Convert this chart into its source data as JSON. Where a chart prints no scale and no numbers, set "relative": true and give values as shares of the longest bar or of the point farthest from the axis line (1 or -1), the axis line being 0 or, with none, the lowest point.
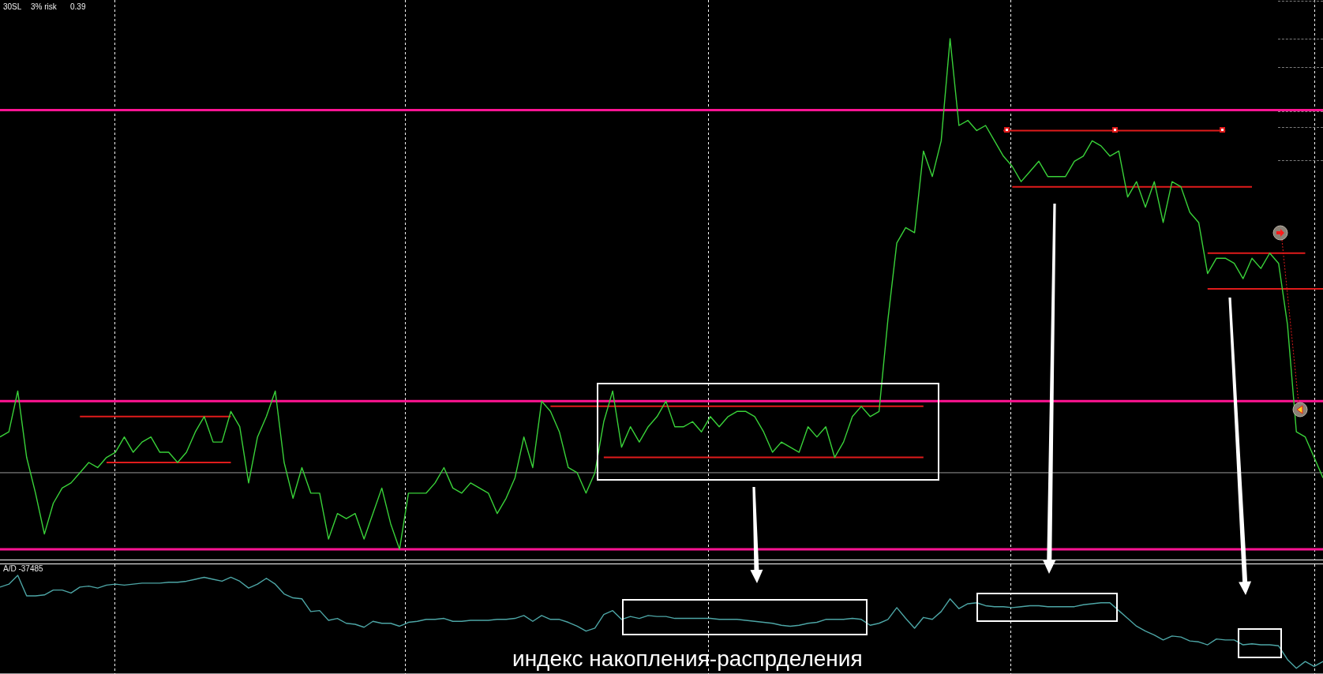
{
  "chart_data": [
    {
      "type": "line",
      "relative": true,
      "categories": [
        null,
        null,
        null,
        null,
        null,
        null,
        null,
        null,
        null,
        null,
        null,
        null,
        null,
        null,
        null,
        null,
        null,
        null,
        null,
        null,
        null,
        null,
        null,
        null,
        null,
        null,
        null,
        null,
        null,
        null,
        null,
        null,
        null,
        null,
        null,
        null,
        null,
        null,
        null,
        null,
        null,
        null,
        null,
        null,
        null,
        null,
        null,
        null,
        null,
        null,
        null,
        null,
        null,
        null,
        null,
        null,
        null,
        null,
        null,
        null,
        null,
        null,
        null,
        null,
        null,
        null,
        null,
        null,
        null,
        null,
        null,
        null,
        null,
        null,
        null,
        null,
        null,
        null,
        null,
        null,
        null,
        null,
        null,
        null,
        null,
        null,
        null,
        null,
        null,
        null,
        null,
        null,
        null,
        null,
        null,
        null,
        null,
        null,
        null,
        null,
        null,
        null,
        null,
        null,
        null,
        null,
        null,
        null,
        null,
        null,
        null,
        null,
        null,
        null,
        null,
        null,
        null,
        null,
        null,
        null,
        null,
        null,
        null,
        null,
        null,
        null,
        null,
        null,
        null,
        null,
        null,
        null,
        null,
        null,
        null,
        null,
        null,
        null,
        null,
        null,
        null,
        null,
        null,
        null,
        null,
        null,
        null,
        null,
        null,
        null
      ],
      "series": [
        {
          "color": "#39d139",
          "values": [
            0.22,
            0.23,
            0.31,
            0.18,
            0.11,
            0.03,
            0.09,
            0.12,
            0.13,
            0.15,
            0.17,
            0.16,
            0.18,
            0.19,
            0.22,
            0.19,
            0.21,
            0.22,
            0.19,
            0.19,
            0.17,
            0.19,
            0.23,
            0.26,
            0.21,
            0.21,
            0.27,
            0.24,
            0.13,
            0.22,
            0.26,
            0.31,
            0.17,
            0.1,
            0.16,
            0.11,
            0.11,
            0.02,
            0.07,
            0.06,
            0.07,
            0.02,
            0.07,
            0.12,
            0.05,
            0,
            0.11,
            0.11,
            0.11,
            0.13,
            0.16,
            0.12,
            0.11,
            0.13,
            0.12,
            0.11,
            0.07,
            0.1,
            0.14,
            0.22,
            0.16,
            0.29,
            0.27,
            0.23,
            0.16,
            0.15,
            0.11,
            0.15,
            0.25,
            0.31,
            0.2,
            0.24,
            0.21,
            0.24,
            0.26,
            0.29,
            0.24,
            0.24,
            0.25,
            0.23,
            0.26,
            0.24,
            0.26,
            0.27,
            0.27,
            0.26,
            0.23,
            0.19,
            0.21,
            0.2,
            0.19,
            0.24,
            0.22,
            0.24,
            0.18,
            0.21,
            0.26,
            0.28,
            0.26,
            0.27,
            0.45,
            0.6,
            0.63,
            0.62,
            0.78,
            0.73,
            0.8,
            1,
            0.83,
            0.84,
            0.82,
            0.83,
            0.8,
            0.77,
            0.75,
            0.72,
            0.74,
            0.76,
            0.73,
            0.73,
            0.73,
            0.76,
            0.77,
            0.8,
            0.79,
            0.77,
            0.78,
            0.69,
            0.72,
            0.67,
            0.72,
            0.64,
            0.72,
            0.71,
            0.66,
            0.64,
            0.54,
            0.57,
            0.57,
            0.56,
            0.53,
            0.57,
            0.55,
            0.58,
            0.56,
            0.44,
            0.23,
            0.22,
            0.18,
            0.14
          ]
        },
        {
          "color": "#e01b1b",
          "values": [
            null,
            null,
            null,
            null,
            null,
            null,
            null,
            null,
            null,
            0.26,
            0.26,
            0.26,
            0.26,
            0.26,
            0.26,
            0.26,
            0.26,
            0.26,
            0.26,
            0.26,
            0.26,
            0.26,
            0.26,
            0.26,
            0.26,
            0.26,
            0.26,
            null,
            null,
            null,
            null,
            null,
            null,
            null,
            null,
            null,
            null,
            null,
            null,
            null,
            null,
            null,
            null,
            null,
            null,
            null,
            null,
            null,
            null,
            null,
            null,
            null,
            null,
            null,
            null,
            null,
            null,
            null,
            null,
            null,
            null,
            null,
            null,
            null,
            null,
            null,
            null,
            null,
            null,
            null,
            null,
            null,
            null,
            null,
            null,
            null,
            null,
            null,
            null,
            null,
            null,
            null,
            null,
            null,
            null,
            null,
            null,
            null,
            null,
            null,
            null,
            null,
            null,
            null,
            null,
            null,
            null,
            null,
            null,
            null,
            null,
            null,
            null,
            null,
            null,
            null,
            null,
            null,
            null,
            null,
            null,
            null,
            null,
            null,
            null,
            null,
            null,
            null,
            null,
            null,
            null,
            null,
            null,
            null,
            null,
            null,
            null,
            null,
            null,
            null,
            null,
            null,
            null,
            null,
            null,
            null,
            null,
            null,
            null,
            null,
            null,
            null,
            null,
            null,
            null,
            null,
            null,
            null,
            null,
            null
          ]
        },
        {
          "color": "#e01b1b",
          "values": [
            null,
            null,
            null,
            null,
            null,
            null,
            null,
            null,
            null,
            null,
            null,
            null,
            0.17,
            0.17,
            0.17,
            0.17,
            0.17,
            0.17,
            0.17,
            0.17,
            0.17,
            0.17,
            0.17,
            0.17,
            0.17,
            0.17,
            0.17,
            null,
            null,
            null,
            null,
            null,
            null,
            null,
            null,
            null,
            null,
            null,
            null,
            null,
            null,
            null,
            null,
            null,
            null,
            null,
            null,
            null,
            null,
            null,
            null,
            null,
            null,
            null,
            null,
            null,
            null,
            null,
            null,
            null,
            null,
            null,
            null,
            null,
            null,
            null,
            null,
            null,
            null,
            null,
            null,
            null,
            null,
            null,
            null,
            null,
            null,
            null,
            null,
            null,
            null,
            null,
            null,
            null,
            null,
            null,
            null,
            null,
            null,
            null,
            null,
            null,
            null,
            null,
            null,
            null,
            null,
            null,
            null,
            null,
            null,
            null,
            null,
            null,
            null,
            null,
            null,
            null,
            null,
            null,
            null,
            null,
            null,
            null,
            null,
            null,
            null,
            null,
            null,
            null,
            null,
            null,
            null,
            null,
            null,
            null,
            null,
            null,
            null,
            null,
            null,
            null,
            null,
            null,
            null,
            null,
            null,
            null,
            null,
            null,
            null,
            null,
            null,
            null,
            null,
            null,
            null,
            null,
            null,
            null
          ]
        },
        {
          "color": "#e01b1b",
          "values": [
            null,
            null,
            null,
            null,
            null,
            null,
            null,
            null,
            null,
            null,
            null,
            null,
            null,
            null,
            null,
            null,
            null,
            null,
            null,
            null,
            null,
            null,
            null,
            null,
            null,
            null,
            null,
            null,
            null,
            null,
            null,
            null,
            null,
            null,
            null,
            null,
            null,
            null,
            null,
            null,
            null,
            null,
            null,
            null,
            null,
            null,
            null,
            null,
            null,
            null,
            null,
            null,
            null,
            null,
            null,
            null,
            null,
            null,
            null,
            null,
            null,
            null,
            0.28,
            0.28,
            0.28,
            0.28,
            0.28,
            0.28,
            0.28,
            0.28,
            0.28,
            0.28,
            0.28,
            0.28,
            0.28,
            0.28,
            0.28,
            0.28,
            0.28,
            0.28,
            0.28,
            0.28,
            0.28,
            0.28,
            0.28,
            0.28,
            0.28,
            0.28,
            0.28,
            0.28,
            0.28,
            0.28,
            0.28,
            0.28,
            0.28,
            0.28,
            0.28,
            0.28,
            0.28,
            0.28,
            0.28,
            0.28,
            0.28,
            0.28,
            0.28,
            null,
            null,
            null,
            null,
            null,
            null,
            null,
            null,
            null,
            null,
            null,
            null,
            null,
            null,
            null,
            null,
            null,
            null,
            null,
            null,
            null,
            null,
            null,
            null,
            null,
            null,
            null,
            null,
            null,
            null,
            null,
            null,
            null,
            null,
            null,
            null,
            null,
            null,
            null,
            null,
            null,
            null,
            null,
            null,
            null
          ]
        },
        {
          "color": "#e01b1b",
          "values": [
            null,
            null,
            null,
            null,
            null,
            null,
            null,
            null,
            null,
            null,
            null,
            null,
            null,
            null,
            null,
            null,
            null,
            null,
            null,
            null,
            null,
            null,
            null,
            null,
            null,
            null,
            null,
            null,
            null,
            null,
            null,
            null,
            null,
            null,
            null,
            null,
            null,
            null,
            null,
            null,
            null,
            null,
            null,
            null,
            null,
            null,
            null,
            null,
            null,
            null,
            null,
            null,
            null,
            null,
            null,
            null,
            null,
            null,
            null,
            null,
            null,
            null,
            null,
            null,
            null,
            null,
            null,
            null,
            0.18,
            0.18,
            0.18,
            0.18,
            0.18,
            0.18,
            0.18,
            0.18,
            0.18,
            0.18,
            0.18,
            0.18,
            0.18,
            0.18,
            0.18,
            0.18,
            0.18,
            0.18,
            0.18,
            0.18,
            0.18,
            0.18,
            0.18,
            0.18,
            0.18,
            0.18,
            0.18,
            0.18,
            0.18,
            0.18,
            0.18,
            0.18,
            0.18,
            0.18,
            0.18,
            0.18,
            0.18,
            null,
            null,
            null,
            null,
            null,
            null,
            null,
            null,
            null,
            null,
            null,
            null,
            null,
            null,
            null,
            null,
            null,
            null,
            null,
            null,
            null,
            null,
            null,
            null,
            null,
            null,
            null,
            null,
            null,
            null,
            null,
            null,
            null,
            null,
            null,
            null,
            null,
            null,
            null,
            null,
            null,
            null,
            null,
            null,
            null
          ]
        },
        {
          "color": "#e01b1b",
          "values": [
            null,
            null,
            null,
            null,
            null,
            null,
            null,
            null,
            null,
            null,
            null,
            null,
            null,
            null,
            null,
            null,
            null,
            null,
            null,
            null,
            null,
            null,
            null,
            null,
            null,
            null,
            null,
            null,
            null,
            null,
            null,
            null,
            null,
            null,
            null,
            null,
            null,
            null,
            null,
            null,
            null,
            null,
            null,
            null,
            null,
            null,
            null,
            null,
            null,
            null,
            null,
            null,
            null,
            null,
            null,
            null,
            null,
            null,
            null,
            null,
            null,
            null,
            null,
            null,
            null,
            null,
            null,
            null,
            null,
            null,
            null,
            null,
            null,
            null,
            null,
            null,
            null,
            null,
            null,
            null,
            null,
            null,
            null,
            null,
            null,
            null,
            null,
            null,
            null,
            null,
            null,
            null,
            null,
            null,
            null,
            null,
            null,
            null,
            null,
            null,
            null,
            null,
            null,
            null,
            null,
            null,
            null,
            null,
            null,
            null,
            null,
            null,
            null,
            0.82,
            0.82,
            0.82,
            0.82,
            0.82,
            0.82,
            0.82,
            0.82,
            0.82,
            0.82,
            0.82,
            0.82,
            0.82,
            0.82,
            0.82,
            0.82,
            0.82,
            0.82,
            0.82,
            0.82,
            0.82,
            0.82,
            0.82,
            0.82,
            0.82,
            0.82,
            null,
            null,
            null,
            null,
            null,
            null,
            null,
            null,
            null,
            null,
            null
          ]
        },
        {
          "color": "#e01b1b",
          "values": [
            null,
            null,
            null,
            null,
            null,
            null,
            null,
            null,
            null,
            null,
            null,
            null,
            null,
            null,
            null,
            null,
            null,
            null,
            null,
            null,
            null,
            null,
            null,
            null,
            null,
            null,
            null,
            null,
            null,
            null,
            null,
            null,
            null,
            null,
            null,
            null,
            null,
            null,
            null,
            null,
            null,
            null,
            null,
            null,
            null,
            null,
            null,
            null,
            null,
            null,
            null,
            null,
            null,
            null,
            null,
            null,
            null,
            null,
            null,
            null,
            null,
            null,
            null,
            null,
            null,
            null,
            null,
            null,
            null,
            null,
            null,
            null,
            null,
            null,
            null,
            null,
            null,
            null,
            null,
            null,
            null,
            null,
            null,
            null,
            null,
            null,
            null,
            null,
            null,
            null,
            null,
            null,
            null,
            null,
            null,
            null,
            null,
            null,
            null,
            null,
            null,
            null,
            null,
            null,
            null,
            null,
            null,
            null,
            null,
            null,
            null,
            null,
            null,
            null,
            0.71,
            0.71,
            0.71,
            0.71,
            0.71,
            0.71,
            0.71,
            0.71,
            0.71,
            0.71,
            0.71,
            0.71,
            0.71,
            0.71,
            0.71,
            0.71,
            0.71,
            0.71,
            0.71,
            0.71,
            0.71,
            0.71,
            0.71,
            0.71,
            0.71,
            0.71,
            0.71,
            0.71,
            null,
            null,
            null,
            null,
            null,
            null,
            null,
            null
          ]
        },
        {
          "color": "#e01b1b",
          "values": [
            null,
            null,
            null,
            null,
            null,
            null,
            null,
            null,
            null,
            null,
            null,
            null,
            null,
            null,
            null,
            null,
            null,
            null,
            null,
            null,
            null,
            null,
            null,
            null,
            null,
            null,
            null,
            null,
            null,
            null,
            null,
            null,
            null,
            null,
            null,
            null,
            null,
            null,
            null,
            null,
            null,
            null,
            null,
            null,
            null,
            null,
            null,
            null,
            null,
            null,
            null,
            null,
            null,
            null,
            null,
            null,
            null,
            null,
            null,
            null,
            null,
            null,
            null,
            null,
            null,
            null,
            null,
            null,
            null,
            null,
            null,
            null,
            null,
            null,
            null,
            null,
            null,
            null,
            null,
            null,
            null,
            null,
            null,
            null,
            null,
            null,
            null,
            null,
            null,
            null,
            null,
            null,
            null,
            null,
            null,
            null,
            null,
            null,
            null,
            null,
            null,
            null,
            null,
            null,
            null,
            null,
            null,
            null,
            null,
            null,
            null,
            null,
            null,
            null,
            null,
            null,
            null,
            null,
            null,
            null,
            null,
            null,
            null,
            null,
            null,
            null,
            null,
            null,
            null,
            null,
            null,
            null,
            null,
            null,
            null,
            null,
            0.58,
            0.58,
            0.58,
            0.58,
            0.58,
            0.58,
            0.58,
            0.58,
            0.58,
            0.58,
            0.58,
            0.58,
            null,
            null
          ]
        },
        {
          "color": "#e01b1b",
          "values": [
            null,
            null,
            null,
            null,
            null,
            null,
            null,
            null,
            null,
            null,
            null,
            null,
            null,
            null,
            null,
            null,
            null,
            null,
            null,
            null,
            null,
            null,
            null,
            null,
            null,
            null,
            null,
            null,
            null,
            null,
            null,
            null,
            null,
            null,
            null,
            null,
            null,
            null,
            null,
            null,
            null,
            null,
            null,
            null,
            null,
            null,
            null,
            null,
            null,
            null,
            null,
            null,
            null,
            null,
            null,
            null,
            null,
            null,
            null,
            null,
            null,
            null,
            null,
            null,
            null,
            null,
            null,
            null,
            null,
            null,
            null,
            null,
            null,
            null,
            null,
            null,
            null,
            null,
            null,
            null,
            null,
            null,
            null,
            null,
            null,
            null,
            null,
            null,
            null,
            null,
            null,
            null,
            null,
            null,
            null,
            null,
            null,
            null,
            null,
            null,
            null,
            null,
            null,
            null,
            null,
            null,
            null,
            null,
            null,
            null,
            null,
            null,
            null,
            null,
            null,
            null,
            null,
            null,
            null,
            null,
            null,
            null,
            null,
            null,
            null,
            null,
            null,
            null,
            null,
            null,
            null,
            null,
            null,
            null,
            null,
            null,
            0.51,
            0.51,
            0.51,
            0.51,
            0.51,
            0.51,
            0.51,
            0.51,
            0.51,
            0.51,
            0.51,
            0.51,
            0.51,
            0.51
          ]
        }
      ],
      "ref_lines": [
        {
          "axis": "y",
          "value": 0.86,
          "color": "#ff1493"
        },
        {
          "axis": "y",
          "value": 0.29,
          "color": "#ff1493"
        },
        {
          "axis": "y",
          "value": 0,
          "color": "#ff1493"
        },
        {
          "axis": "y",
          "value": 0.15,
          "color": "#9a9a9a"
        }
      ],
      "annotations": [
        "30SL",
        "3% risk",
        "0.39"
      ]
    },
    {
      "type": "line",
      "relative": true,
      "categories": [
        null,
        null,
        null,
        null,
        null,
        null,
        null,
        null,
        null,
        null,
        null,
        null,
        null,
        null,
        null,
        null,
        null,
        null,
        null,
        null,
        null,
        null,
        null,
        null,
        null,
        null,
        null,
        null,
        null,
        null,
        null,
        null,
        null,
        null,
        null,
        null,
        null,
        null,
        null,
        null,
        null,
        null,
        null,
        null,
        null,
        null,
        null,
        null,
        null,
        null,
        null,
        null,
        null,
        null,
        null,
        null,
        null,
        null,
        null,
        null,
        null,
        null,
        null,
        null,
        null,
        null,
        null,
        null,
        null,
        null,
        null,
        null,
        null,
        null,
        null,
        null,
        null,
        null,
        null,
        null,
        null,
        null,
        null,
        null,
        null,
        null,
        null,
        null,
        null,
        null,
        null,
        null,
        null,
        null,
        null,
        null,
        null,
        null,
        null,
        null,
        null,
        null,
        null,
        null,
        null,
        null,
        null,
        null,
        null,
        null,
        null,
        null,
        null,
        null,
        null,
        null,
        null,
        null,
        null,
        null,
        null,
        null,
        null,
        null,
        null,
        null,
        null,
        null,
        null,
        null,
        null,
        null,
        null,
        null,
        null,
        null,
        null,
        null,
        null,
        null,
        null,
        null,
        null,
        null,
        null,
        null,
        null,
        null,
        null,
        null
      ],
      "series": [
        {
          "color": "#4da6a6",
          "values": [
            0.88,
            0.91,
            1,
            0.79,
            0.79,
            0.8,
            0.85,
            0.85,
            0.82,
            0.88,
            0.89,
            0.87,
            0.9,
            0.91,
            0.9,
            0.91,
            0.92,
            0.92,
            0.92,
            0.93,
            0.93,
            0.94,
            0.96,
            0.98,
            0.96,
            0.94,
            0.98,
            0.94,
            0.87,
            0.91,
            0.97,
            0.91,
            0.81,
            0.77,
            0.76,
            0.63,
            0.64,
            0.54,
            0.56,
            0.51,
            0.5,
            0.47,
            0.53,
            0.51,
            0.51,
            0.48,
            0.52,
            0.53,
            0.55,
            0.55,
            0.56,
            0.53,
            0.53,
            0.54,
            0.54,
            0.54,
            0.55,
            0.55,
            0.56,
            0.59,
            0.53,
            0.59,
            0.55,
            0.55,
            0.52,
            0.48,
            0.43,
            0.46,
            0.6,
            0.64,
            0.55,
            0.58,
            0.56,
            0.59,
            0.58,
            0.58,
            0.56,
            0.56,
            0.56,
            0.56,
            0.56,
            0.55,
            0.55,
            0.55,
            0.54,
            0.53,
            0.52,
            0.51,
            0.49,
            0.48,
            0.49,
            0.51,
            0.52,
            0.55,
            0.55,
            0.55,
            0.56,
            0.55,
            0.49,
            0.51,
            0.55,
            0.67,
            0.56,
            0.46,
            0.57,
            0.55,
            0.63,
            0.76,
            0.66,
            0.71,
            0.72,
            0.69,
            0.68,
            0.68,
            0.67,
            0.68,
            0.69,
            0.69,
            0.68,
            0.68,
            0.68,
            0.68,
            0.7,
            0.71,
            0.72,
            0.72,
            0.64,
            0.56,
            0.48,
            0.43,
            0.39,
            0.34,
            0.38,
            0.37,
            0.33,
            0.32,
            0.29,
            0.35,
            0.34,
            0.34,
            0.29,
            0.3,
            0.29,
            0.29,
            0.28,
            0.14,
            0.05,
            0.12,
            0.07,
            0.12
          ]
        }
      ],
      "annotations": [
        "A/D -37485",
        "индекс накопления-распрделения"
      ]
    }
  ]
}
